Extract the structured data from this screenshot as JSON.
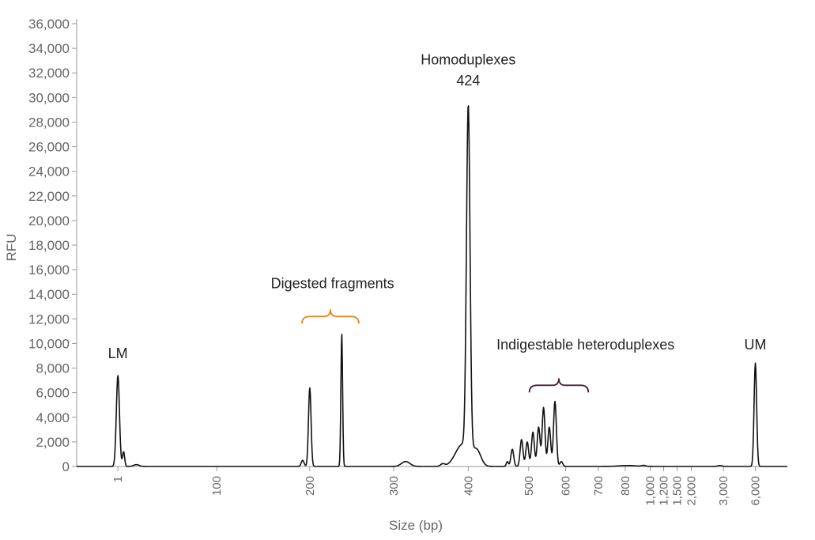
{
  "chart_data": {
    "type": "line",
    "title": "",
    "xlabel": "Size (bp)",
    "ylabel": "RFU",
    "ylim": [
      0,
      36000
    ],
    "y_ticks": [
      0,
      2000,
      4000,
      6000,
      8000,
      10000,
      12000,
      14000,
      16000,
      18000,
      20000,
      22000,
      24000,
      26000,
      28000,
      30000,
      32000,
      34000,
      36000
    ],
    "y_tick_labels": [
      "0",
      "2,000",
      "4,000",
      "6,000",
      "8,000",
      "10,000",
      "12,000",
      "14,000",
      "16,000",
      "18,000",
      "20,000",
      "22,000",
      "24,000",
      "26,000",
      "28,000",
      "30,000",
      "32,000",
      "34,000",
      "36,000"
    ],
    "x_ticks": [
      {
        "label": "1",
        "u": 0.058
      },
      {
        "label": "100",
        "u": 0.197
      },
      {
        "label": "200",
        "u": 0.328
      },
      {
        "label": "300",
        "u": 0.446
      },
      {
        "label": "400",
        "u": 0.551
      },
      {
        "label": "500",
        "u": 0.636
      },
      {
        "label": "600",
        "u": 0.688
      },
      {
        "label": "700",
        "u": 0.734
      },
      {
        "label": "800",
        "u": 0.772
      },
      {
        "label": "1,000",
        "u": 0.807
      },
      {
        "label": "1,200",
        "u": 0.826
      },
      {
        "label": "1,500",
        "u": 0.845
      },
      {
        "label": "2,000",
        "u": 0.865
      },
      {
        "label": "3,000",
        "u": 0.91
      },
      {
        "label": "6,000",
        "u": 0.955
      }
    ],
    "grid": false,
    "series": [
      {
        "color": "#111111",
        "peaks": [
          {
            "u": 0.058,
            "y": 7400,
            "w": 0.0022
          },
          {
            "u": 0.066,
            "y": 1200,
            "w": 0.0015
          },
          {
            "u": 0.084,
            "y": 150,
            "w": 0.004
          },
          {
            "u": 0.318,
            "y": 500,
            "w": 0.002
          },
          {
            "u": 0.328,
            "y": 6400,
            "w": 0.0018
          },
          {
            "u": 0.373,
            "y": 10800,
            "w": 0.0012
          },
          {
            "u": 0.463,
            "y": 400,
            "w": 0.006
          },
          {
            "u": 0.515,
            "y": 200,
            "w": 0.003
          },
          {
            "u": 0.543,
            "y": 1800,
            "w": 0.01
          },
          {
            "u": 0.551,
            "y": 28000,
            "w": 0.0025
          },
          {
            "u": 0.563,
            "y": 1200,
            "w": 0.006
          },
          {
            "u": 0.606,
            "y": 400,
            "w": 0.0015
          },
          {
            "u": 0.613,
            "y": 1400,
            "w": 0.002
          },
          {
            "u": 0.626,
            "y": 2200,
            "w": 0.002
          },
          {
            "u": 0.634,
            "y": 2000,
            "w": 0.002
          },
          {
            "u": 0.642,
            "y": 2800,
            "w": 0.002
          },
          {
            "u": 0.65,
            "y": 3200,
            "w": 0.002
          },
          {
            "u": 0.657,
            "y": 4800,
            "w": 0.002
          },
          {
            "u": 0.665,
            "y": 3200,
            "w": 0.002
          },
          {
            "u": 0.673,
            "y": 5300,
            "w": 0.002
          },
          {
            "u": 0.682,
            "y": 400,
            "w": 0.002
          },
          {
            "u": 0.775,
            "y": 80,
            "w": 0.012
          },
          {
            "u": 0.798,
            "y": 80,
            "w": 0.003
          },
          {
            "u": 0.905,
            "y": 80,
            "w": 0.003
          },
          {
            "u": 0.955,
            "y": 8400,
            "w": 0.0018
          }
        ]
      }
    ],
    "annotations": [
      {
        "text": "LM",
        "x_u": 0.058,
        "y_value": 8800
      },
      {
        "text": "Digested fragments",
        "x_u": 0.36,
        "y_value": 14500
      },
      {
        "text": "Homoduplexes",
        "x_u": 0.551,
        "y_value": 32700
      },
      {
        "text": "424",
        "x_u": 0.551,
        "y_value": 31000
      },
      {
        "text": "Indigestable heteroduplexes",
        "x_u": 0.716,
        "y_value": 9500
      },
      {
        "text": "UM",
        "x_u": 0.955,
        "y_value": 9500
      }
    ],
    "brackets": [
      {
        "x1_u": 0.317,
        "x2_u": 0.397,
        "y_value": 12200,
        "color": "#E8841C"
      },
      {
        "x1_u": 0.637,
        "x2_u": 0.72,
        "y_value": 6600,
        "color": "#4A1E3A"
      }
    ]
  }
}
